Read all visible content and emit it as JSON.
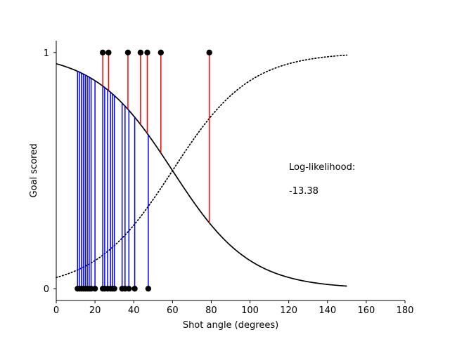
{
  "chart_data": {
    "type": "scatter",
    "xlabel": "Shot angle (degrees)",
    "ylabel": "Goal scored",
    "xlim": [
      0,
      180
    ],
    "ylim": [
      -0.05,
      1.05
    ],
    "x_ticks": [
      0,
      20,
      40,
      60,
      80,
      100,
      120,
      140,
      160,
      180
    ],
    "y_ticks": [
      0,
      1
    ],
    "x_tick_labels": [
      "0",
      "20",
      "40",
      "60",
      "80",
      "100",
      "120",
      "140",
      "160",
      "180"
    ],
    "y_tick_labels": [
      "0",
      "1"
    ],
    "spines": "left-bottom",
    "grid": false,
    "curves": [
      {
        "style": "solid",
        "color": "#000000",
        "function": "logistic",
        "intercept": 3.0,
        "slope": -0.05,
        "x_range": [
          0,
          150
        ]
      },
      {
        "style": "dotted",
        "color": "#000000",
        "function": "logistic",
        "intercept": -3.0,
        "slope": 0.05,
        "x_range": [
          0,
          150
        ]
      }
    ],
    "goals": [
      24,
      27,
      37,
      43.5,
      47,
      54,
      79
    ],
    "misses": [
      11,
      12,
      13,
      14,
      15,
      16,
      17,
      18,
      20,
      24,
      25,
      26.5,
      28,
      29,
      30,
      34,
      35.5,
      37.5,
      40.5,
      47.5
    ],
    "colors": {
      "goal_line": "#ff0000",
      "miss_line": "#0000ff",
      "marker": "#000000",
      "axis": "#000000"
    },
    "annotation_title": "Log-likelihood:",
    "annotation_value": "-13.38"
  }
}
